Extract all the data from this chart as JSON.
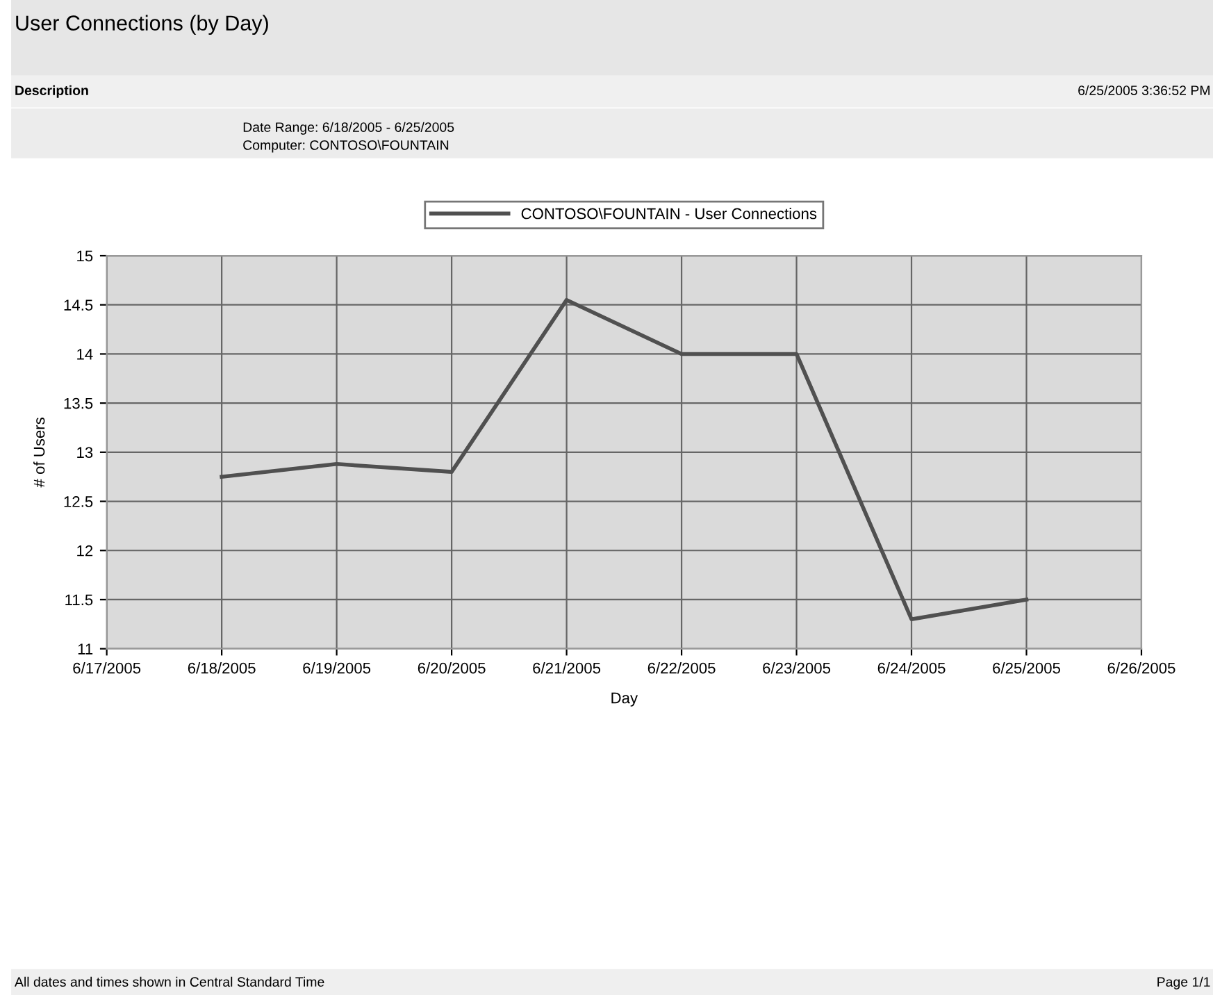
{
  "chart_data": {
    "type": "line",
    "title": "User Connections (by Day)",
    "annotations": [
      "Description",
      "6/25/2005 3:36:52 PM",
      "Date Range: 6/18/2005 - 6/25/2005",
      "Computer: CONTOSO\\FOUNTAIN",
      "All dates and times shown in Central Standard Time",
      "Page 1/1"
    ],
    "xlabel": "Day",
    "ylabel": "# of Users",
    "x": [
      "2005-06-18",
      "2005-06-19",
      "2005-06-20",
      "2005-06-21",
      "2005-06-22",
      "2005-06-23",
      "2005-06-24",
      "2005-06-25"
    ],
    "series": [
      {
        "name": "CONTOSO\\FOUNTAIN - User Connections",
        "color": "#505050",
        "values": [
          12.75,
          12.88,
          12.8,
          14.55,
          14.0,
          14.0,
          11.3,
          11.5
        ]
      }
    ],
    "xlim": [
      "2005-06-17",
      "2005-06-26"
    ],
    "xticks": [
      {
        "value": "2005-06-17",
        "label": "6/17/2005"
      },
      {
        "value": "2005-06-18",
        "label": "6/18/2005"
      },
      {
        "value": "2005-06-19",
        "label": "6/19/2005"
      },
      {
        "value": "2005-06-20",
        "label": "6/20/2005"
      },
      {
        "value": "2005-06-21",
        "label": "6/21/2005"
      },
      {
        "value": "2005-06-22",
        "label": "6/22/2005"
      },
      {
        "value": "2005-06-23",
        "label": "6/23/2005"
      },
      {
        "value": "2005-06-24",
        "label": "6/24/2005"
      },
      {
        "value": "2005-06-25",
        "label": "6/25/2005"
      },
      {
        "value": "2005-06-26",
        "label": "6/26/2005"
      }
    ],
    "ylim": [
      11,
      15
    ],
    "yticks": [
      11,
      11.5,
      12,
      12.5,
      13,
      13.5,
      14,
      14.5,
      15
    ],
    "grid": true,
    "legend": "top",
    "marker": "none",
    "line_style": "solid"
  }
}
